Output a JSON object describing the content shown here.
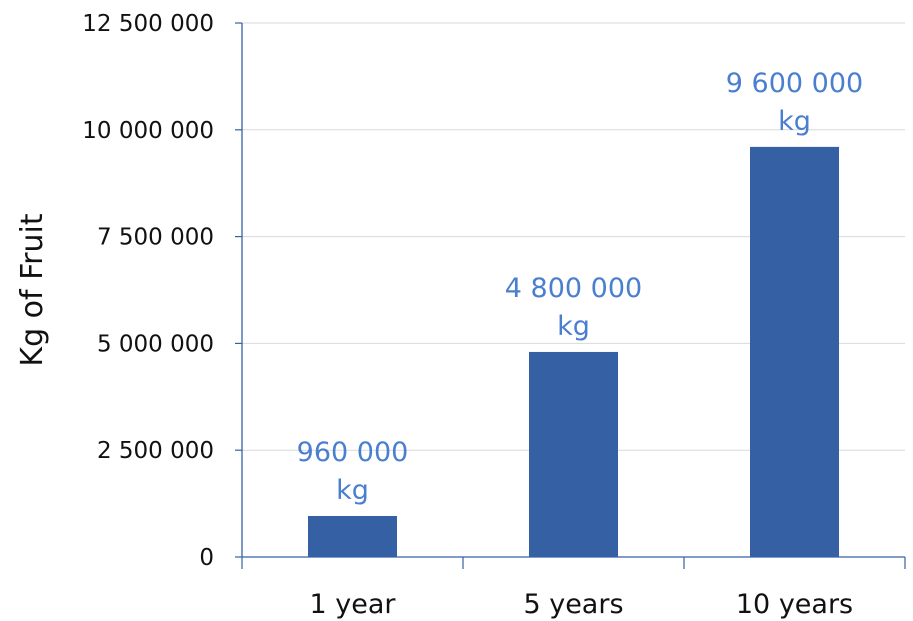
{
  "chart_data": {
    "type": "bar",
    "categories": [
      "1 year",
      "5 years",
      "10 years"
    ],
    "values": [
      960000,
      4800000,
      9600000
    ],
    "ylim": [
      0,
      12500000
    ],
    "yticks": [
      0,
      2500000,
      5000000,
      7500000,
      10000000,
      12500000
    ],
    "ytick_labels": [
      "0",
      "2 500 000",
      "5 000 000",
      "7 500 000",
      "10 000 000",
      "12 500 000"
    ],
    "data_labels": [
      [
        "960 000",
        "kg"
      ],
      [
        "4 800 000",
        "kg"
      ],
      [
        "9 600 000",
        "kg"
      ]
    ],
    "ylabel": "Kg of Fruit",
    "xlabel": "",
    "title": "",
    "grid": true,
    "legend": "none",
    "colors": {
      "bar": "#3660a4",
      "data_label": "#4a7fd0",
      "axis": "#3660a4",
      "grid": "#d9d9d9"
    }
  }
}
